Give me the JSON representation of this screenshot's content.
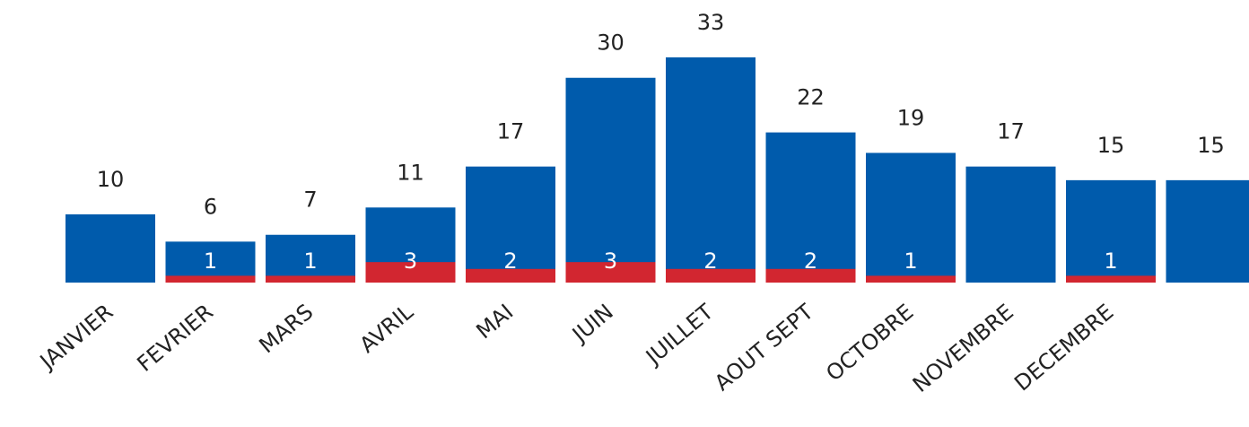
{
  "chart_data": {
    "type": "bar",
    "categories": [
      "JANVIER",
      "FEVRIER",
      "MARS",
      "AVRIL",
      "MAI",
      "JUIN",
      "JUILLET",
      "AOUT SEPT",
      "OCTOBRE",
      "NOVEMBRE",
      "DECEMBRE",
      null
    ],
    "series": [
      {
        "color": "#005bac",
        "values": [
          10,
          6,
          7,
          11,
          17,
          30,
          33,
          22,
          19,
          17,
          15,
          15
        ]
      },
      {
        "color": "#d22630",
        "values": [
          null,
          1,
          1,
          3,
          2,
          3,
          2,
          2,
          1,
          null,
          1,
          null
        ]
      }
    ],
    "ylim": [
      0,
      41.4
    ]
  }
}
